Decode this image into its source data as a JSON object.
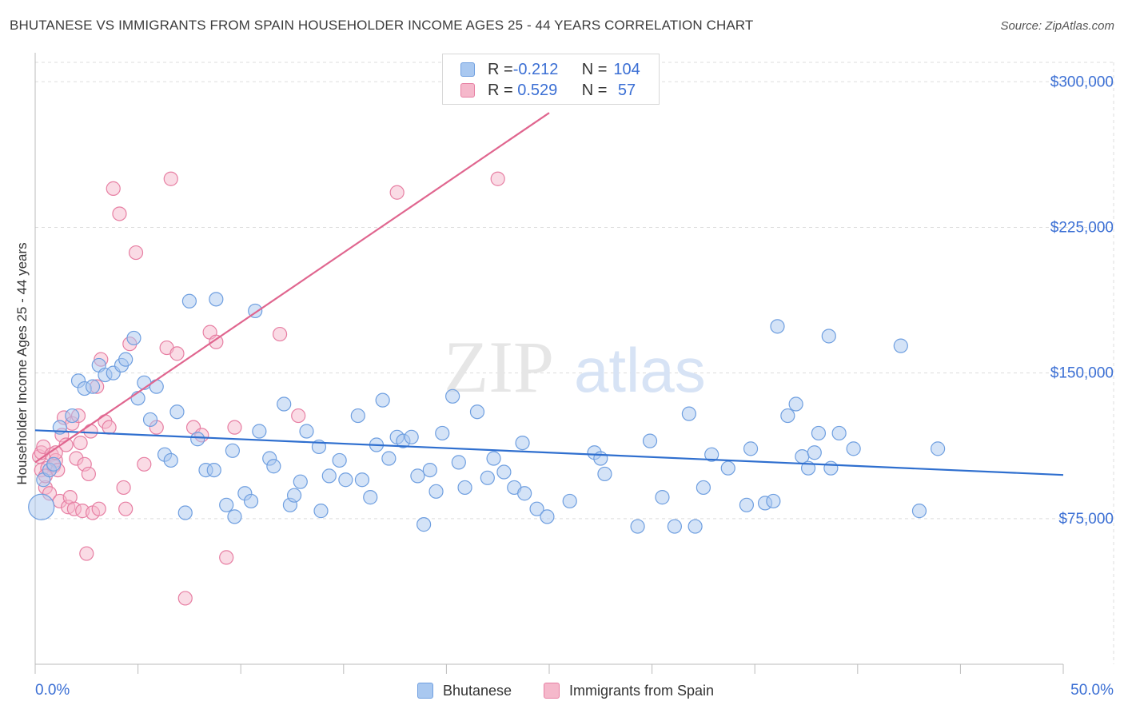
{
  "title": "BHUTANESE VS IMMIGRANTS FROM SPAIN HOUSEHOLDER INCOME AGES 25 - 44 YEARS CORRELATION CHART",
  "source": "Source: ZipAtlas.com",
  "watermark": {
    "zip": "ZIP",
    "atlas": "atlas"
  },
  "legend_top": {
    "rows": [
      {
        "r_label": "R = ",
        "r_value": "-0.212",
        "n_label": "N = ",
        "n_value": "104",
        "color": "#a9c8f0"
      },
      {
        "r_label": "R = ",
        "r_value": " 0.529",
        "n_label": "N = ",
        "n_value": " 57",
        "color": "#f5b8cb"
      }
    ]
  },
  "colors": {
    "blue_fill": "#a9c8f0",
    "blue_stroke": "#6f9fe0",
    "blue_line": "#2f6fcf",
    "pink_fill": "#f5b8cb",
    "pink_stroke": "#e77fa3",
    "pink_line": "#e0668f",
    "tick_label": "#3b6fd4",
    "grid": "#dddddd"
  },
  "chart_data": {
    "type": "scatter",
    "title": "BHUTANESE VS IMMIGRANTS FROM SPAIN HOUSEHOLDER INCOME AGES 25 - 44 YEARS CORRELATION CHART",
    "xlabel": "",
    "ylabel": "Householder Income Ages 25 - 44 years",
    "xlim": [
      0,
      50
    ],
    "ylim": [
      0,
      310000
    ],
    "x_tick_labels": [
      "0.0%",
      "50.0%"
    ],
    "y_ticks": [
      75000,
      150000,
      225000,
      300000
    ],
    "y_tick_labels": [
      "$75,000",
      "$150,000",
      "$225,000",
      "$300,000"
    ],
    "grid": true,
    "legend_placement": "bottom-center",
    "series": [
      {
        "name": "Bhutanese",
        "r": -0.212,
        "n": 104,
        "trend": {
          "x": [
            0,
            50
          ],
          "y": [
            120500,
            97500
          ]
        },
        "points": [
          {
            "x": 0.3,
            "y": 81000,
            "big": true
          },
          {
            "x": 0.4,
            "y": 95000
          },
          {
            "x": 0.7,
            "y": 100000
          },
          {
            "x": 0.9,
            "y": 103000
          },
          {
            "x": 1.2,
            "y": 122000
          },
          {
            "x": 1.8,
            "y": 128000
          },
          {
            "x": 2.1,
            "y": 146000
          },
          {
            "x": 2.4,
            "y": 142000
          },
          {
            "x": 2.8,
            "y": 143000
          },
          {
            "x": 3.1,
            "y": 154000
          },
          {
            "x": 3.4,
            "y": 149000
          },
          {
            "x": 3.8,
            "y": 150000
          },
          {
            "x": 4.2,
            "y": 154000
          },
          {
            "x": 4.4,
            "y": 157000
          },
          {
            "x": 4.8,
            "y": 168000
          },
          {
            "x": 5.0,
            "y": 137000
          },
          {
            "x": 5.3,
            "y": 145000
          },
          {
            "x": 5.6,
            "y": 126000
          },
          {
            "x": 5.9,
            "y": 143000
          },
          {
            "x": 6.3,
            "y": 108000
          },
          {
            "x": 6.6,
            "y": 105000
          },
          {
            "x": 6.9,
            "y": 130000
          },
          {
            "x": 7.3,
            "y": 78000
          },
          {
            "x": 7.5,
            "y": 187000
          },
          {
            "x": 7.9,
            "y": 116000
          },
          {
            "x": 8.3,
            "y": 100000
          },
          {
            "x": 8.7,
            "y": 100000
          },
          {
            "x": 8.8,
            "y": 188000
          },
          {
            "x": 9.3,
            "y": 82000
          },
          {
            "x": 9.6,
            "y": 110000
          },
          {
            "x": 9.7,
            "y": 76000
          },
          {
            "x": 10.2,
            "y": 88000
          },
          {
            "x": 10.5,
            "y": 84000
          },
          {
            "x": 10.7,
            "y": 182000
          },
          {
            "x": 10.9,
            "y": 120000
          },
          {
            "x": 11.4,
            "y": 106000
          },
          {
            "x": 11.6,
            "y": 102000
          },
          {
            "x": 12.1,
            "y": 134000
          },
          {
            "x": 12.4,
            "y": 82000
          },
          {
            "x": 12.6,
            "y": 87000
          },
          {
            "x": 12.9,
            "y": 94000
          },
          {
            "x": 13.2,
            "y": 120000
          },
          {
            "x": 13.8,
            "y": 112000
          },
          {
            "x": 13.9,
            "y": 79000
          },
          {
            "x": 14.3,
            "y": 97000
          },
          {
            "x": 14.8,
            "y": 105000
          },
          {
            "x": 15.1,
            "y": 95000
          },
          {
            "x": 15.7,
            "y": 128000
          },
          {
            "x": 15.9,
            "y": 95000
          },
          {
            "x": 16.3,
            "y": 86000
          },
          {
            "x": 16.6,
            "y": 113000
          },
          {
            "x": 16.9,
            "y": 136000
          },
          {
            "x": 17.2,
            "y": 106000
          },
          {
            "x": 17.6,
            "y": 117000
          },
          {
            "x": 17.9,
            "y": 115000
          },
          {
            "x": 18.3,
            "y": 117000
          },
          {
            "x": 18.6,
            "y": 97000
          },
          {
            "x": 18.9,
            "y": 72000
          },
          {
            "x": 19.2,
            "y": 100000
          },
          {
            "x": 19.5,
            "y": 89000
          },
          {
            "x": 19.8,
            "y": 119000
          },
          {
            "x": 20.3,
            "y": 138000
          },
          {
            "x": 20.6,
            "y": 104000
          },
          {
            "x": 20.9,
            "y": 91000
          },
          {
            "x": 21.5,
            "y": 130000
          },
          {
            "x": 22.0,
            "y": 96000
          },
          {
            "x": 22.3,
            "y": 106000
          },
          {
            "x": 22.8,
            "y": 99000
          },
          {
            "x": 23.3,
            "y": 91000
          },
          {
            "x": 23.7,
            "y": 114000
          },
          {
            "x": 23.8,
            "y": 88000
          },
          {
            "x": 24.4,
            "y": 80000
          },
          {
            "x": 24.9,
            "y": 76000
          },
          {
            "x": 26.0,
            "y": 84000
          },
          {
            "x": 27.2,
            "y": 109000
          },
          {
            "x": 27.5,
            "y": 106000
          },
          {
            "x": 27.7,
            "y": 98000
          },
          {
            "x": 29.3,
            "y": 71000
          },
          {
            "x": 29.9,
            "y": 115000
          },
          {
            "x": 30.5,
            "y": 86000
          },
          {
            "x": 31.1,
            "y": 71000
          },
          {
            "x": 31.8,
            "y": 129000
          },
          {
            "x": 32.1,
            "y": 71000
          },
          {
            "x": 32.5,
            "y": 91000
          },
          {
            "x": 32.9,
            "y": 108000
          },
          {
            "x": 33.7,
            "y": 101000
          },
          {
            "x": 34.6,
            "y": 82000
          },
          {
            "x": 34.8,
            "y": 111000
          },
          {
            "x": 35.5,
            "y": 83000
          },
          {
            "x": 35.9,
            "y": 84000
          },
          {
            "x": 36.1,
            "y": 174000
          },
          {
            "x": 36.6,
            "y": 128000
          },
          {
            "x": 37.0,
            "y": 134000
          },
          {
            "x": 37.3,
            "y": 107000
          },
          {
            "x": 37.6,
            "y": 101000
          },
          {
            "x": 37.9,
            "y": 109000
          },
          {
            "x": 38.6,
            "y": 169000
          },
          {
            "x": 38.1,
            "y": 119000
          },
          {
            "x": 38.7,
            "y": 101000
          },
          {
            "x": 39.1,
            "y": 119000
          },
          {
            "x": 39.8,
            "y": 111000
          },
          {
            "x": 42.1,
            "y": 164000
          },
          {
            "x": 43.0,
            "y": 79000
          },
          {
            "x": 43.9,
            "y": 111000
          }
        ]
      },
      {
        "name": "Immigrants from Spain",
        "r": 0.529,
        "n": 57,
        "trend": {
          "x": [
            0,
            25
          ],
          "y": [
            104000,
            284000
          ]
        },
        "points": [
          {
            "x": 0.2,
            "y": 107000
          },
          {
            "x": 0.3,
            "y": 109000
          },
          {
            "x": 0.3,
            "y": 100000
          },
          {
            "x": 0.4,
            "y": 112000
          },
          {
            "x": 0.5,
            "y": 91000
          },
          {
            "x": 0.6,
            "y": 101000
          },
          {
            "x": 0.7,
            "y": 88000
          },
          {
            "x": 0.8,
            "y": 108000
          },
          {
            "x": 0.9,
            "y": 102000
          },
          {
            "x": 1.0,
            "y": 105000
          },
          {
            "x": 1.1,
            "y": 100000
          },
          {
            "x": 1.2,
            "y": 84000
          },
          {
            "x": 1.3,
            "y": 118000
          },
          {
            "x": 1.4,
            "y": 127000
          },
          {
            "x": 1.5,
            "y": 113000
          },
          {
            "x": 1.6,
            "y": 81000
          },
          {
            "x": 1.7,
            "y": 86000
          },
          {
            "x": 1.8,
            "y": 124000
          },
          {
            "x": 1.9,
            "y": 80000
          },
          {
            "x": 2.0,
            "y": 106000
          },
          {
            "x": 2.1,
            "y": 128000
          },
          {
            "x": 2.2,
            "y": 114000
          },
          {
            "x": 2.3,
            "y": 79000
          },
          {
            "x": 2.4,
            "y": 103000
          },
          {
            "x": 2.5,
            "y": 57000
          },
          {
            "x": 2.6,
            "y": 98000
          },
          {
            "x": 2.7,
            "y": 120000
          },
          {
            "x": 2.8,
            "y": 78000
          },
          {
            "x": 3.0,
            "y": 143000
          },
          {
            "x": 3.1,
            "y": 80000
          },
          {
            "x": 3.2,
            "y": 157000
          },
          {
            "x": 3.4,
            "y": 125000
          },
          {
            "x": 3.6,
            "y": 122000
          },
          {
            "x": 3.8,
            "y": 245000
          },
          {
            "x": 4.1,
            "y": 232000
          },
          {
            "x": 4.3,
            "y": 91000
          },
          {
            "x": 4.4,
            "y": 80000
          },
          {
            "x": 4.6,
            "y": 165000
          },
          {
            "x": 4.9,
            "y": 212000
          },
          {
            "x": 5.3,
            "y": 103000
          },
          {
            "x": 5.9,
            "y": 122000
          },
          {
            "x": 6.4,
            "y": 163000
          },
          {
            "x": 6.6,
            "y": 250000
          },
          {
            "x": 6.9,
            "y": 160000
          },
          {
            "x": 7.3,
            "y": 34000
          },
          {
            "x": 7.7,
            "y": 122000
          },
          {
            "x": 8.1,
            "y": 118000
          },
          {
            "x": 8.5,
            "y": 171000
          },
          {
            "x": 8.8,
            "y": 166000
          },
          {
            "x": 9.3,
            "y": 55000
          },
          {
            "x": 9.7,
            "y": 122000
          },
          {
            "x": 11.9,
            "y": 170000
          },
          {
            "x": 12.8,
            "y": 128000
          },
          {
            "x": 17.6,
            "y": 243000
          },
          {
            "x": 22.5,
            "y": 250000
          },
          {
            "x": 0.5,
            "y": 97000
          },
          {
            "x": 1.0,
            "y": 109000
          }
        ]
      }
    ]
  }
}
